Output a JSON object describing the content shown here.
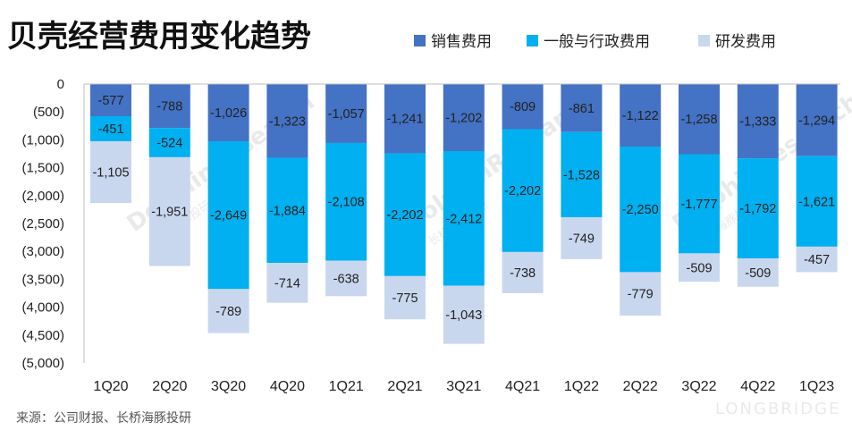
{
  "title": "贝壳经营费用变化趋势",
  "source": "来源：公司财报、长桥海豚投研",
  "watermark": {
    "brand": "DolphinResearch",
    "chinese": "长桥海豚投研",
    "longbridge": "LONGBRIDGE"
  },
  "colors": {
    "sales": "#4472C4",
    "admin": "#00B0F0",
    "rnd": "#C9D7EE"
  },
  "chart_data": {
    "type": "bar",
    "stacked": true,
    "categories": [
      "1Q20",
      "2Q20",
      "3Q20",
      "4Q20",
      "1Q21",
      "2Q21",
      "3Q21",
      "4Q21",
      "1Q22",
      "2Q22",
      "3Q22",
      "4Q22",
      "1Q23"
    ],
    "series": [
      {
        "name": "销售费用",
        "color": "#4472C4",
        "values": [
          -577,
          -788,
          -1026,
          -1323,
          -1057,
          -1241,
          -1202,
          -809,
          -861,
          -1122,
          -1258,
          -1333,
          -1294
        ]
      },
      {
        "name": "一般与行政费用",
        "color": "#00B0F0",
        "values": [
          -451,
          -524,
          -2649,
          -1884,
          -2108,
          -2202,
          -2412,
          -2202,
          -1528,
          -2250,
          -1777,
          -1792,
          -1621
        ]
      },
      {
        "name": "研发费用",
        "color": "#C9D7EE",
        "values": [
          -1105,
          -1951,
          -789,
          -714,
          -638,
          -775,
          -1043,
          -738,
          -749,
          -779,
          -509,
          -509,
          -457
        ]
      }
    ],
    "data_labels": [
      [
        "-577",
        "-788",
        "-1,026",
        "-1,323",
        "-1,057",
        "-1,241",
        "-1,202",
        "-809",
        "-861",
        "-1,122",
        "-1,258",
        "-1,333",
        "-1,294"
      ],
      [
        "-451",
        "-524",
        "-2,649",
        "-1,884",
        "-2,108",
        "-2,202",
        "-2,412",
        "-2,202",
        "-1,528",
        "-2,250",
        "-1,777",
        "-1,792",
        "-1,621"
      ],
      [
        "-1,105",
        "-1,951",
        "-789",
        "-714",
        "-638",
        "-775",
        "-1,043",
        "-738",
        "-749",
        "-779",
        "-509",
        "-509",
        "-457"
      ]
    ],
    "y_ticks": [
      0,
      -500,
      -1000,
      -1500,
      -2000,
      -2500,
      -3000,
      -3500,
      -4000,
      -4500,
      -5000
    ],
    "y_tick_labels": [
      "0",
      "(500)",
      "(1,000)",
      "(1,500)",
      "(2,000)",
      "(2,500)",
      "(3,000)",
      "(3,500)",
      "(4,000)",
      "(4,500)",
      "(5,000)"
    ],
    "ylim": [
      -5000,
      0
    ],
    "legend_position": "top-right",
    "grid": false
  }
}
